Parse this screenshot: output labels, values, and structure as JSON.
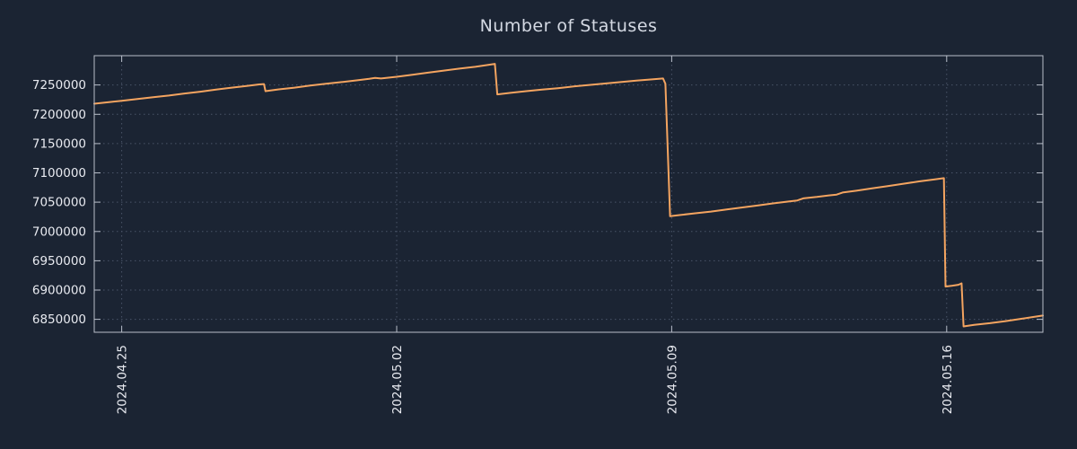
{
  "title": "Number of Statuses",
  "colors": {
    "background": "#1b2433",
    "line": "#f4a460",
    "grid": "#4a5468",
    "border": "#b8bec9",
    "axis_text": "#e8eaf0",
    "title_text": "#d4d9e3"
  },
  "chart_data": {
    "type": "line",
    "title": "Number of Statuses",
    "series_name": "Number of Statuses",
    "legend": "none",
    "grid": "dotted",
    "x_unit": "days since 2024-04-24",
    "xlim": [
      0.3,
      24.45
    ],
    "ylim": [
      6828000,
      7300000
    ],
    "x_ticks": [
      {
        "pos": 1,
        "label": "2024.04.25"
      },
      {
        "pos": 8,
        "label": "2024.05.02"
      },
      {
        "pos": 15,
        "label": "2024.05.09"
      },
      {
        "pos": 22,
        "label": "2024.05.16"
      }
    ],
    "y_ticks": [
      6850000,
      6900000,
      6950000,
      7000000,
      7050000,
      7100000,
      7150000,
      7200000,
      7250000
    ],
    "points": [
      [
        0.3,
        7218000
      ],
      [
        0.7,
        7221000
      ],
      [
        1.0,
        7223000
      ],
      [
        1.4,
        7226000
      ],
      [
        1.8,
        7229000
      ],
      [
        2.2,
        7232000
      ],
      [
        2.6,
        7235500
      ],
      [
        3.0,
        7238500
      ],
      [
        3.4,
        7242000
      ],
      [
        3.8,
        7245500
      ],
      [
        4.2,
        7248500
      ],
      [
        4.5,
        7251000
      ],
      [
        4.62,
        7251500
      ],
      [
        4.66,
        7239500
      ],
      [
        5.0,
        7242500
      ],
      [
        5.4,
        7245500
      ],
      [
        5.8,
        7249000
      ],
      [
        6.2,
        7252000
      ],
      [
        6.6,
        7255000
      ],
      [
        7.0,
        7258000
      ],
      [
        7.3,
        7260500
      ],
      [
        7.45,
        7262000
      ],
      [
        7.6,
        7261000
      ],
      [
        8.0,
        7264000
      ],
      [
        8.4,
        7267500
      ],
      [
        8.8,
        7271000
      ],
      [
        9.2,
        7274500
      ],
      [
        9.6,
        7278000
      ],
      [
        10.0,
        7281000
      ],
      [
        10.35,
        7284500
      ],
      [
        10.5,
        7286000
      ],
      [
        10.56,
        7234000
      ],
      [
        10.9,
        7236500
      ],
      [
        11.3,
        7239500
      ],
      [
        11.7,
        7242000
      ],
      [
        12.1,
        7244500
      ],
      [
        12.5,
        7247500
      ],
      [
        12.9,
        7250000
      ],
      [
        13.3,
        7252500
      ],
      [
        13.7,
        7255000
      ],
      [
        14.1,
        7257500
      ],
      [
        14.5,
        7259500
      ],
      [
        14.78,
        7261000
      ],
      [
        14.84,
        7252000
      ],
      [
        14.96,
        7026000
      ],
      [
        15.2,
        7028000
      ],
      [
        15.6,
        7031000
      ],
      [
        16.0,
        7034000
      ],
      [
        16.4,
        7037500
      ],
      [
        16.8,
        7041000
      ],
      [
        17.2,
        7044500
      ],
      [
        17.6,
        7048000
      ],
      [
        18.0,
        7051500
      ],
      [
        18.2,
        7053000
      ],
      [
        18.35,
        7056500
      ],
      [
        18.7,
        7059000
      ],
      [
        19.0,
        7061500
      ],
      [
        19.2,
        7063000
      ],
      [
        19.35,
        7066500
      ],
      [
        19.7,
        7069500
      ],
      [
        20.1,
        7073500
      ],
      [
        20.5,
        7077500
      ],
      [
        20.9,
        7081500
      ],
      [
        21.3,
        7085500
      ],
      [
        21.7,
        7089000
      ],
      [
        21.93,
        7091000
      ],
      [
        21.97,
        6906000
      ],
      [
        22.15,
        6907500
      ],
      [
        22.3,
        6909000
      ],
      [
        22.38,
        6911500
      ],
      [
        22.43,
        6838000
      ],
      [
        22.7,
        6840500
      ],
      [
        23.1,
        6843500
      ],
      [
        23.5,
        6847000
      ],
      [
        23.9,
        6851000
      ],
      [
        24.2,
        6854000
      ],
      [
        24.45,
        6856500
      ]
    ]
  }
}
